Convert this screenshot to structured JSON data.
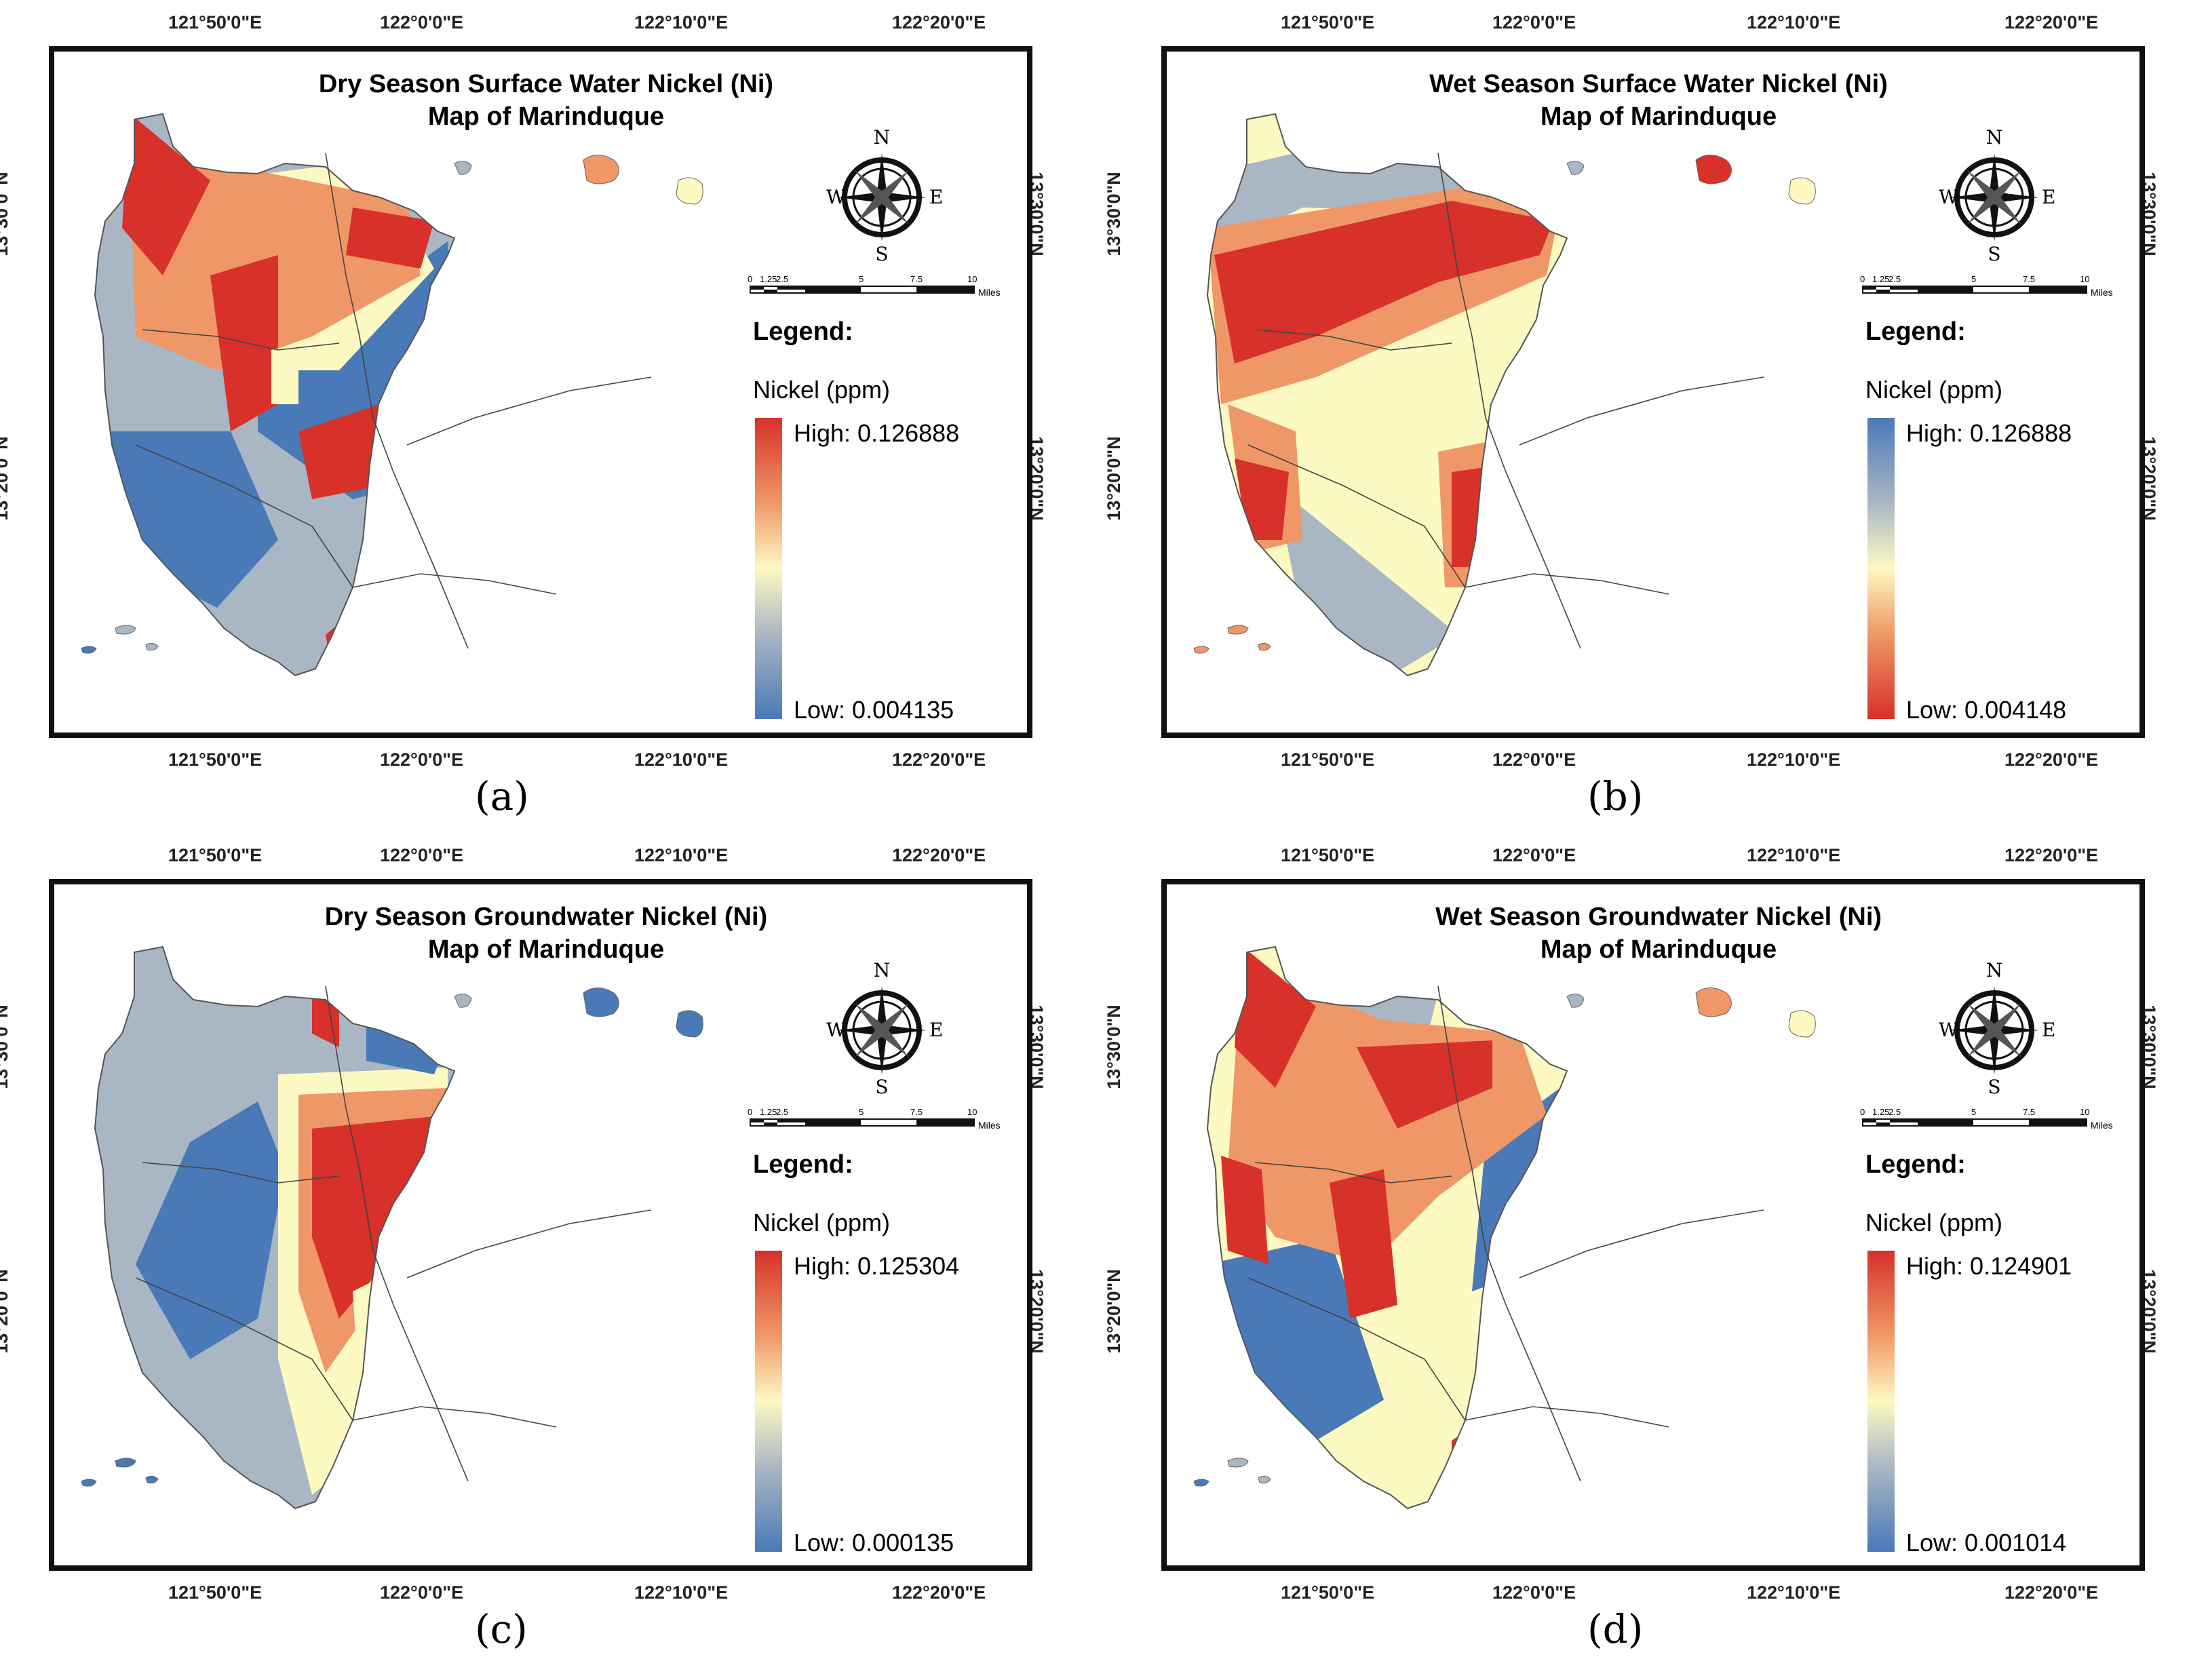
{
  "axes": {
    "lon_ticks": [
      "121°50'0\"E",
      "122°0'0\"E",
      "122°10'0\"E",
      "122°20'0\"E"
    ],
    "lat_ticks": [
      "13°30'0\"N",
      "13°20'0\"N"
    ]
  },
  "common": {
    "map_of": "Map of Marinduque",
    "legend_heading": "Legend:",
    "legend_title": "Nickel (ppm)",
    "scale_ticks": [
      "0",
      "1.25",
      "2.5",
      "5",
      "7.5",
      "10"
    ],
    "scale_unit": "Miles",
    "compass": {
      "n": "N",
      "s": "S",
      "e": "E",
      "w": "W"
    }
  },
  "panels": [
    {
      "title": "Dry Season Surface Water Nickel (Ni)",
      "high": "High: 0.126888",
      "low": "Low: 0.004135",
      "caption": "(a)",
      "ramp_top_color": "#d7312a",
      "ramp_bottom_color": "#4a79b8"
    },
    {
      "title": "Wet Season Surface Water Nickel (Ni)",
      "high": "High: 0.126888",
      "low": "Low: 0.004148",
      "caption": "(b)",
      "ramp_top_color": "#4a79b8",
      "ramp_bottom_color": "#d7312a"
    },
    {
      "title": "Dry Season Groundwater Nickel (Ni)",
      "high": "High: 0.125304",
      "low": "Low: 0.000135",
      "caption": "(c)",
      "ramp_top_color": "#d7312a",
      "ramp_bottom_color": "#4a79b8"
    },
    {
      "title": "Wet Season Groundwater Nickel (Ni)",
      "high": "High: 0.124901",
      "low": "Low: 0.001014",
      "caption": "(d)",
      "ramp_top_color": "#d7312a",
      "ramp_bottom_color": "#4a79b8"
    }
  ],
  "colors": {
    "red": "#d7312a",
    "orange": "#ef9767",
    "yellow": "#fdf9c2",
    "gray": "#a9b7c4",
    "blue": "#4a79b8"
  }
}
